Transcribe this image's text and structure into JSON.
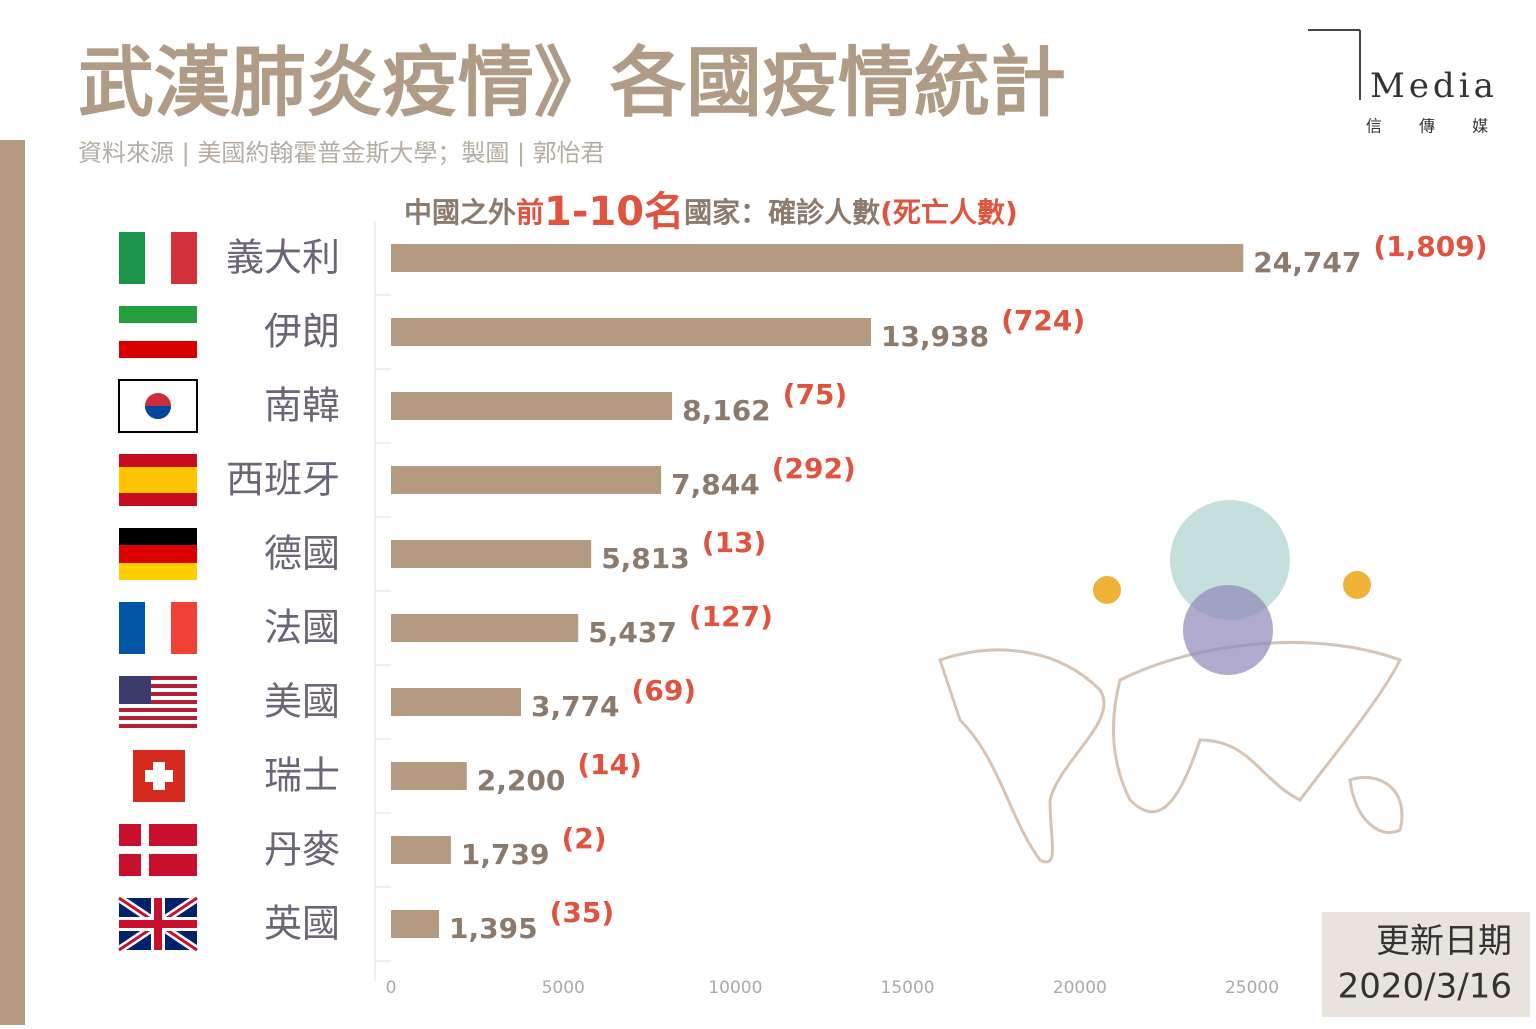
{
  "title": "武漢肺炎疫情》各國疫情統計",
  "source": "資料來源 | 美國約翰霍普金斯大學；製圖 | 郭怡君",
  "logo": {
    "name": "Media",
    "subtitle": "信 傳 媒"
  },
  "update": {
    "label": "更新日期",
    "date": "2020/3/16"
  },
  "chart_data": {
    "type": "bar",
    "header": [
      "中國之外",
      "前",
      "1-10名",
      "國家：確診人數",
      "(死亡人數)"
    ],
    "categories": [
      "義大利",
      "伊朗",
      "南韓",
      "西班牙",
      "德國",
      "法國",
      "美國",
      "瑞士",
      "丹麥",
      "英國"
    ],
    "values": [
      24747,
      13938,
      8162,
      7844,
      5813,
      5437,
      3774,
      2200,
      1739,
      1395
    ],
    "value_labels": [
      "24,747",
      "13,938",
      "8,162",
      "7,844",
      "5,813",
      "5,437",
      "3,774",
      "2,200",
      "1,739",
      "1,395"
    ],
    "deaths": [
      1809,
      724,
      75,
      292,
      13,
      127,
      69,
      14,
      2,
      35
    ],
    "death_labels": [
      "(1,809)",
      "(724)",
      "(75)",
      "(292)",
      "(13)",
      "(127)",
      "(69)",
      "(14)",
      "(2)",
      "(35)"
    ],
    "color": "#b39a80",
    "xlim": [
      0,
      25000
    ],
    "xticks": [
      0,
      5000,
      10000,
      15000,
      20000,
      25000
    ]
  }
}
